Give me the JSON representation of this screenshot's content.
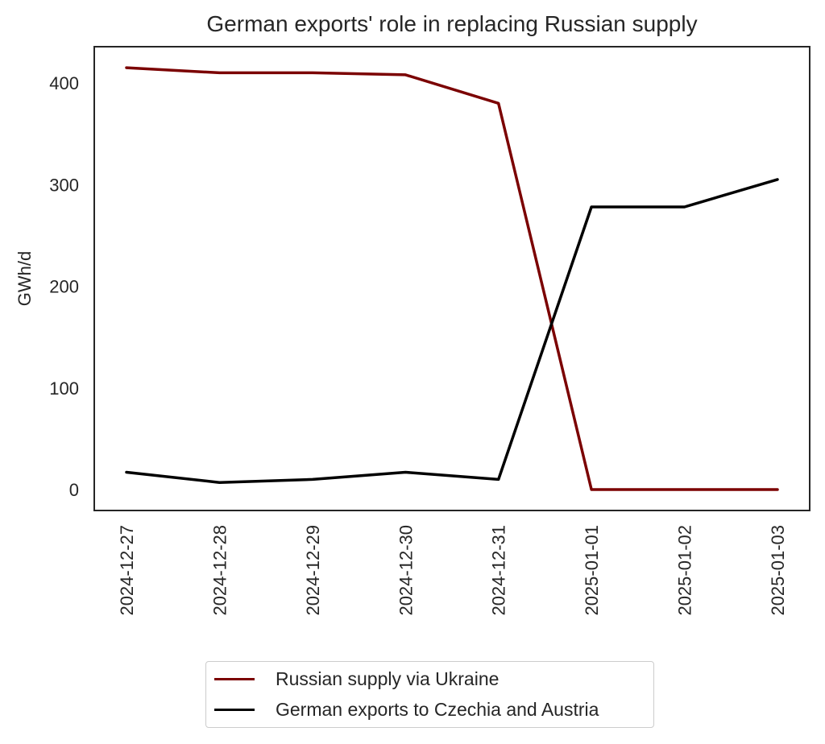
{
  "chart_data": {
    "type": "line",
    "title": "German exports' role in replacing Russian supply",
    "xlabel": "",
    "ylabel": "GWh/d",
    "x": [
      "2024-12-27",
      "2024-12-28",
      "2024-12-29",
      "2024-12-30",
      "2024-12-31",
      "2025-01-01",
      "2025-01-02",
      "2025-01-03"
    ],
    "series": [
      {
        "name": "Russian supply via Ukraine",
        "color": "#7b0000",
        "values": [
          415,
          410,
          410,
          408,
          380,
          0,
          0,
          0
        ]
      },
      {
        "name": "German exports to Czechia and Austria",
        "color": "#000000",
        "values": [
          17,
          7,
          10,
          17,
          10,
          278,
          278,
          305
        ]
      }
    ],
    "yticks": [
      0,
      100,
      200,
      300,
      400
    ],
    "ylim": [
      -20,
      436
    ],
    "grid": false,
    "legend_position": "below"
  },
  "title": "German exports' role in replacing Russian supply",
  "ylabel": "GWh/d",
  "yticks": [
    "0",
    "100",
    "200",
    "300",
    "400"
  ],
  "xticks": [
    "2024-12-27",
    "2024-12-28",
    "2024-12-29",
    "2024-12-30",
    "2024-12-31",
    "2025-01-01",
    "2025-01-02",
    "2025-01-03"
  ],
  "legend": {
    "items": [
      {
        "label": "Russian supply via Ukraine",
        "color": "#7b0000"
      },
      {
        "label": "German exports to Czechia and Austria",
        "color": "#000000"
      }
    ]
  }
}
